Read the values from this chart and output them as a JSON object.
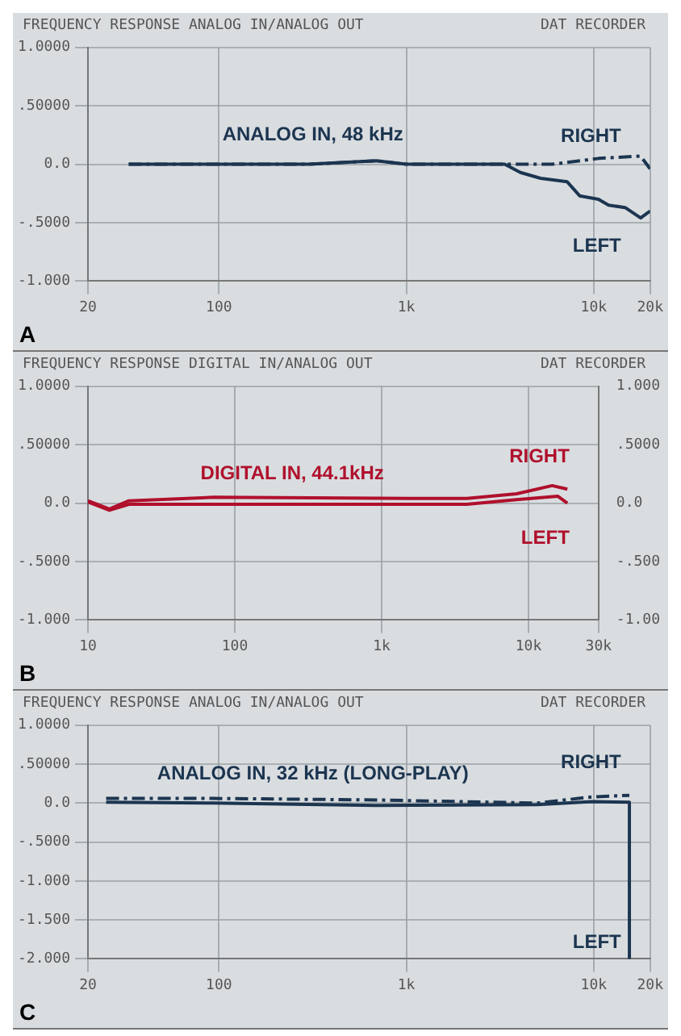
{
  "chart_data": [
    {
      "type": "line",
      "title": "FREQUENCY RESPONSE  ANALOG IN/ANALOG OUT",
      "subtitle": "DAT RECORDER",
      "annotations": [
        "ANALOG IN, 48 kHz",
        "A"
      ],
      "log": "x",
      "grid": true,
      "legend": false,
      "marker": "none",
      "xlim": [
        20,
        20000
      ],
      "xticks": [
        20,
        100,
        {
          "value": 1000,
          "label": "1k"
        },
        {
          "value": 10000,
          "label": "10k"
        },
        {
          "value": 20000,
          "label": "20k"
        }
      ],
      "ylim": [
        -1,
        1
      ],
      "yticks": [
        {
          "value": -1,
          "label": "-1.000"
        },
        {
          "value": -0.5,
          "label": "-.5000"
        },
        {
          "value": 0,
          "label": "0.0"
        },
        {
          "value": 0.5,
          "label": ".50000"
        },
        {
          "value": 1,
          "label": "1.0000"
        }
      ],
      "series": [
        {
          "name": "RIGHT",
          "color": "#1c3550",
          "line_style": "dashed",
          "x": [
            33,
            100,
            300,
            690,
            1000,
            3350,
            6000,
            10600,
            17800,
            20000
          ],
          "values": [
            0.0,
            0.0,
            0.0,
            0.03,
            0.0,
            0.0,
            0.0,
            0.05,
            0.07,
            -0.04
          ]
        },
        {
          "name": "LEFT",
          "color": "#1c3550",
          "line_style": "solid",
          "x": [
            33,
            100,
            300,
            690,
            1000,
            3350,
            4060,
            5210,
            7220,
            8410,
            10600,
            12000,
            14700,
            17800,
            20000
          ],
          "values": [
            0.0,
            0.0,
            0.0,
            0.03,
            0.0,
            0.0,
            -0.07,
            -0.12,
            -0.15,
            -0.27,
            -0.3,
            -0.35,
            -0.37,
            -0.46,
            -0.4
          ]
        }
      ]
    },
    {
      "type": "line",
      "title": "FREQUENCY RESPONSE  DIGITAL IN/ANALOG OUT",
      "subtitle": "DAT RECORDER",
      "annotations": [
        "DIGITAL IN, 44.1kHz",
        "B"
      ],
      "log": "x",
      "grid": true,
      "legend": false,
      "marker": "none",
      "xlim": [
        10,
        30000
      ],
      "xticks": [
        10,
        100,
        {
          "value": 1000,
          "label": "1k"
        },
        {
          "value": 10000,
          "label": "10k"
        },
        {
          "value": 30000,
          "label": "30k"
        }
      ],
      "ylim": [
        -1,
        1
      ],
      "yticks": [
        {
          "value": -1,
          "label": "-1.000"
        },
        {
          "value": -0.5,
          "label": "-.5000"
        },
        {
          "value": 0,
          "label": "0.0"
        },
        {
          "value": 0.5,
          "label": ".50000"
        },
        {
          "value": 1,
          "label": "1.0000"
        }
      ],
      "y2lim": [
        -1,
        1
      ],
      "y2ticks": [
        {
          "value": -1,
          "label": "-1.00"
        },
        {
          "value": -0.5,
          "label": "-.500"
        },
        {
          "value": 0,
          "label": "0.0"
        },
        {
          "value": 0.5,
          "label": ".5000"
        },
        {
          "value": 1,
          "label": "1.000"
        }
      ],
      "series": [
        {
          "name": "RIGHT",
          "color": "#b0102c",
          "line_style": "solid",
          "x": [
            10,
            14,
            19,
            72,
            1700,
            3800,
            8300,
            14500,
            18400
          ],
          "values": [
            0.02,
            -0.05,
            0.02,
            0.05,
            0.04,
            0.04,
            0.08,
            0.15,
            0.12
          ]
        },
        {
          "name": "LEFT",
          "color": "#b0102c",
          "line_style": "solid",
          "x": [
            10,
            14,
            19,
            72,
            1700,
            3800,
            8300,
            15800,
            18400
          ],
          "values": [
            0.01,
            -0.06,
            -0.01,
            -0.01,
            -0.01,
            -0.01,
            0.03,
            0.06,
            0.0
          ]
        }
      ]
    },
    {
      "type": "line",
      "title": "FREQUENCY RESPONSE  ANALOG IN/ANALOG OUT",
      "subtitle": "DAT RECORDER",
      "annotations": [
        "ANALOG IN, 32 kHz (LONG-PLAY)",
        "C"
      ],
      "log": "x",
      "grid": true,
      "legend": false,
      "marker": "none",
      "xlim": [
        20,
        20000
      ],
      "xticks": [
        20,
        100,
        {
          "value": 1000,
          "label": "1k"
        },
        {
          "value": 10000,
          "label": "10k"
        },
        {
          "value": 20000,
          "label": "20k"
        }
      ],
      "ylim": [
        -2,
        1
      ],
      "yticks": [
        {
          "value": -2,
          "label": "-2.000"
        },
        {
          "value": -1.5,
          "label": "-1.500"
        },
        {
          "value": -1,
          "label": "-1.000"
        },
        {
          "value": -0.5,
          "label": "-.5000"
        },
        {
          "value": 0,
          "label": "0.0"
        },
        {
          "value": 0.5,
          "label": ".50000"
        },
        {
          "value": 1,
          "label": "1.0000"
        }
      ],
      "series": [
        {
          "name": "RIGHT",
          "color": "#1c3550",
          "line_style": "dashed",
          "x": [
            25,
            93,
            690,
            5000,
            9800,
            15500
          ],
          "values": [
            0.06,
            0.06,
            0.04,
            0.0,
            0.08,
            0.1
          ]
        },
        {
          "name": "LEFT",
          "color": "#1c3550",
          "line_style": "solid",
          "x": [
            25,
            93,
            690,
            5000,
            9800,
            15500,
            15500
          ],
          "values": [
            0.01,
            0.0,
            -0.03,
            -0.02,
            0.02,
            0.01,
            -2.0
          ]
        }
      ]
    }
  ]
}
